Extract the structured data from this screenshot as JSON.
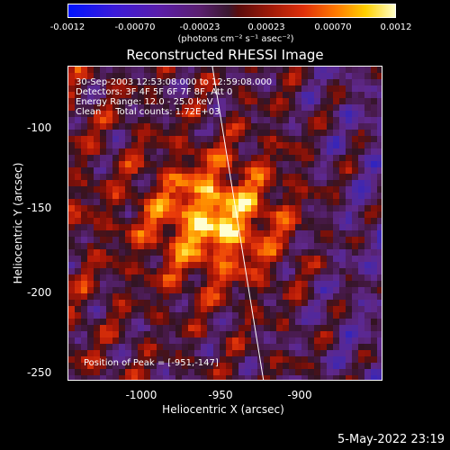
{
  "colorbar": {
    "ticks": [
      "-0.0012",
      "-0.00070",
      "-0.00023",
      "0.00023",
      "0.00070",
      "0.0012"
    ],
    "unit_label": "(photons cm⁻² s⁻¹ asec⁻²)"
  },
  "title": "Reconstructed RHESSI Image",
  "info": {
    "time_range": "30-Sep-2003 12:53:08.000 to 12:59:08.000",
    "detectors": "Detectors: 3F 4F 5F 6F 7F 8F, Att 0",
    "energy": "Energy Range: 12.0 - 25.0 keV",
    "clean": "Clean     Total counts: 1.72E+03",
    "peak": "Position of Peak = [-951,-147]"
  },
  "axes": {
    "xlabel": "Heliocentric X (arcsec)",
    "ylabel": "Heliocentric Y (arcsec)",
    "xticks": [
      "-1000",
      "-950",
      "-900"
    ],
    "yticks": [
      "-100",
      "-150",
      "-200",
      "-250"
    ]
  },
  "timestamp": "5-May-2022 23:19",
  "colors": {
    "negative": "#0014ff",
    "zero": "#3a1830",
    "positive": "#ffffc8",
    "limb_line": "#ffffff"
  }
}
